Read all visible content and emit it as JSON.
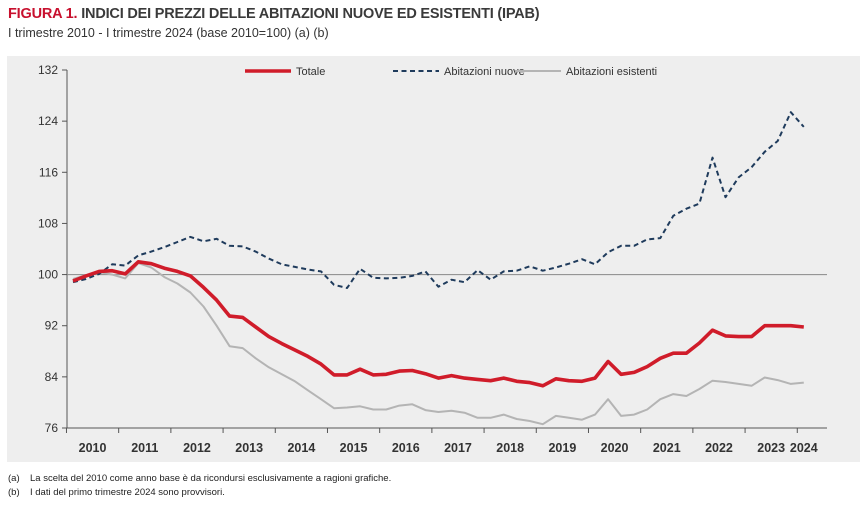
{
  "figure": {
    "number": "FIGURA 1.",
    "title": "INDICI DEI PREZZI DELLE ABITAZIONI NUOVE ED ESISTENTI (IPAB)",
    "subtitle": "I trimestre 2010 - I trimestre 2024 (base 2010=100) (a) (b)"
  },
  "notes": [
    {
      "mark": "(a)",
      "text": "La scelta del 2010 come anno base è da ricondursi esclusivamente a ragioni grafiche."
    },
    {
      "mark": "(b)",
      "text": "I dati del primo trimestre 2024 sono provvisori."
    }
  ],
  "colors": {
    "totale": "#d01c2a",
    "nuove": "#1f3b5c",
    "esistenti": "#b4b4b4",
    "panel": "#eeeeee",
    "baseline": "#888888"
  },
  "chart_data": {
    "type": "line",
    "xlabel": "",
    "ylabel": "",
    "ylim": [
      76,
      132
    ],
    "y_ticks": [
      76,
      84,
      92,
      100,
      108,
      116,
      124,
      132
    ],
    "x_tick_labels": [
      "2010",
      "2011",
      "2012",
      "2013",
      "2014",
      "2015",
      "2016",
      "2017",
      "2018",
      "2019",
      "2020",
      "2021",
      "2022",
      "2023",
      "2024"
    ],
    "x": [
      "2010Q1",
      "2010Q2",
      "2010Q3",
      "2010Q4",
      "2011Q1",
      "2011Q2",
      "2011Q3",
      "2011Q4",
      "2012Q1",
      "2012Q2",
      "2012Q3",
      "2012Q4",
      "2013Q1",
      "2013Q2",
      "2013Q3",
      "2013Q4",
      "2014Q1",
      "2014Q2",
      "2014Q3",
      "2014Q4",
      "2015Q1",
      "2015Q2",
      "2015Q3",
      "2015Q4",
      "2016Q1",
      "2016Q2",
      "2016Q3",
      "2016Q4",
      "2017Q1",
      "2017Q2",
      "2017Q3",
      "2017Q4",
      "2018Q1",
      "2018Q2",
      "2018Q3",
      "2018Q4",
      "2019Q1",
      "2019Q2",
      "2019Q3",
      "2019Q4",
      "2020Q1",
      "2020Q2",
      "2020Q3",
      "2020Q4",
      "2021Q1",
      "2021Q2",
      "2021Q3",
      "2021Q4",
      "2022Q1",
      "2022Q2",
      "2022Q3",
      "2022Q4",
      "2023Q1",
      "2023Q2",
      "2023Q3",
      "2023Q4",
      "2024Q1"
    ],
    "reference_line": 100,
    "grid": false,
    "legend_position": "top",
    "series": [
      {
        "name": "Totale",
        "style": "solid-thick",
        "values": [
          99.0,
          99.8,
          100.5,
          100.6,
          100.1,
          102.0,
          101.7,
          101.0,
          100.5,
          99.8,
          98.0,
          96.0,
          93.5,
          93.3,
          91.8,
          90.3,
          89.2,
          88.2,
          87.2,
          86.0,
          84.3,
          84.3,
          85.2,
          84.3,
          84.4,
          84.9,
          85.0,
          84.5,
          83.8,
          84.2,
          83.8,
          83.6,
          83.4,
          83.8,
          83.3,
          83.1,
          82.6,
          83.7,
          83.4,
          83.3,
          83.8,
          86.4,
          84.4,
          84.7,
          85.6,
          86.9,
          87.7,
          87.7,
          89.3,
          91.3,
          90.4,
          90.3,
          90.3,
          92.0,
          92.0,
          92.0,
          91.8
        ]
      },
      {
        "name": "Abitazioni nuove",
        "style": "dashed",
        "values": [
          98.8,
          99.3,
          100.1,
          101.6,
          101.4,
          103.0,
          103.6,
          104.3,
          105.1,
          105.9,
          105.2,
          105.6,
          104.5,
          104.4,
          103.6,
          102.5,
          101.6,
          101.2,
          100.8,
          100.5,
          98.4,
          97.9,
          100.9,
          99.5,
          99.4,
          99.5,
          99.8,
          100.5,
          98.1,
          99.2,
          98.8,
          100.7,
          99.2,
          100.5,
          100.6,
          101.3,
          100.6,
          101.1,
          101.7,
          102.4,
          101.6,
          103.5,
          104.5,
          104.5,
          105.5,
          105.7,
          109.2,
          110.3,
          111.1,
          118.3,
          112.1,
          115.2,
          116.8,
          119.2,
          120.9,
          125.4,
          123.1
        ]
      },
      {
        "name": "Abitazioni esistenti",
        "style": "solid-thin",
        "values": [
          99.3,
          99.9,
          100.4,
          100.0,
          99.4,
          101.8,
          101.1,
          99.6,
          98.6,
          97.2,
          95.0,
          92.0,
          88.8,
          88.5,
          86.9,
          85.5,
          84.4,
          83.3,
          81.9,
          80.5,
          79.1,
          79.2,
          79.4,
          78.9,
          78.9,
          79.5,
          79.7,
          78.8,
          78.5,
          78.7,
          78.4,
          77.6,
          77.6,
          78.1,
          77.4,
          77.1,
          76.6,
          77.9,
          77.6,
          77.3,
          78.1,
          80.5,
          77.9,
          78.1,
          78.9,
          80.5,
          81.3,
          81.0,
          82.1,
          83.4,
          83.2,
          82.9,
          82.6,
          83.9,
          83.5,
          82.9,
          83.1
        ]
      }
    ]
  }
}
